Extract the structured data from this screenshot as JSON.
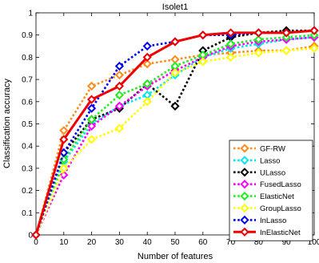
{
  "chart_data": {
    "type": "line",
    "title": "Isolet1",
    "xlabel": "Number of features",
    "ylabel": "Classification accuracy",
    "xlim": [
      0,
      100
    ],
    "ylim": [
      0,
      1
    ],
    "xticks": [
      "0",
      "10",
      "20",
      "30",
      "40",
      "50",
      "60",
      "70",
      "80",
      "90",
      "100"
    ],
    "yticks": [
      "0",
      "0.1",
      "0.2",
      "0.3",
      "0.4",
      "0.5",
      "0.6",
      "0.7",
      "0.8",
      "0.9",
      "1"
    ],
    "legend_position": "bottom-right",
    "grid": false,
    "x": [
      0,
      10,
      20,
      30,
      40,
      50,
      60,
      70,
      80,
      90,
      100
    ],
    "series": [
      {
        "name": "GF-RW",
        "color": "#FF8C1A",
        "marker": "diamond",
        "style": "dotted",
        "values": [
          0.0,
          0.47,
          0.67,
          0.72,
          0.77,
          0.79,
          0.81,
          0.82,
          0.83,
          0.83,
          0.85
        ]
      },
      {
        "name": "Lasso",
        "color": "#00E5EE",
        "marker": "diamond",
        "style": "dotted",
        "values": [
          0.0,
          0.33,
          0.5,
          0.58,
          0.63,
          0.72,
          0.8,
          0.84,
          0.86,
          0.88,
          0.89
        ]
      },
      {
        "name": "ULasso",
        "color": "#000000",
        "marker": "diamond",
        "style": "dotted",
        "values": [
          0.0,
          0.37,
          0.52,
          0.57,
          0.68,
          0.58,
          0.83,
          0.89,
          0.91,
          0.92,
          0.92
        ]
      },
      {
        "name": "FusedLasso",
        "color": "#FF00FF",
        "marker": "diamond",
        "style": "dotted",
        "values": [
          0.0,
          0.27,
          0.49,
          0.58,
          0.67,
          0.74,
          0.8,
          0.85,
          0.87,
          0.88,
          0.89
        ]
      },
      {
        "name": "ElasticNet",
        "color": "#22EE22",
        "marker": "diamond",
        "style": "dotted",
        "values": [
          0.0,
          0.34,
          0.52,
          0.63,
          0.68,
          0.76,
          0.81,
          0.86,
          0.88,
          0.89,
          0.9
        ]
      },
      {
        "name": "GroupLasso",
        "color": "#FFFF00",
        "marker": "diamond",
        "style": "dotted",
        "values": [
          0.0,
          0.3,
          0.43,
          0.48,
          0.6,
          0.73,
          0.78,
          0.8,
          0.82,
          0.83,
          0.84
        ]
      },
      {
        "name": "InLasso",
        "color": "#0000EE",
        "marker": "diamond",
        "style": "dotted",
        "values": [
          0.0,
          0.37,
          0.57,
          0.76,
          0.85,
          0.87,
          0.9,
          0.9,
          0.91,
          0.91,
          0.92
        ]
      },
      {
        "name": "InElasticNet",
        "color": "#EE0000",
        "marker": "diamond",
        "style": "solid",
        "values": [
          0.0,
          0.43,
          0.61,
          0.67,
          0.8,
          0.87,
          0.9,
          0.91,
          0.91,
          0.91,
          0.92
        ]
      }
    ]
  }
}
